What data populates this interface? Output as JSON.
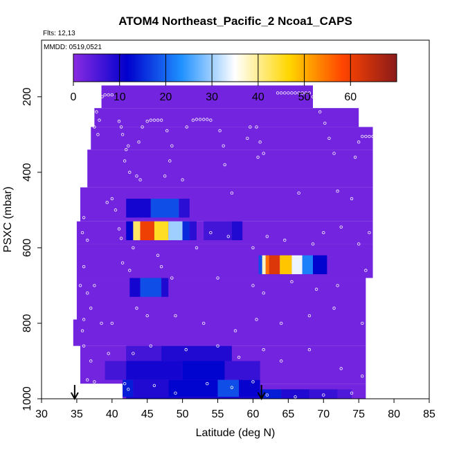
{
  "chart_data": {
    "type": "heatmap",
    "title": "ATOM4 Northeast_Pacific_2 Ncoa1_CAPS",
    "flights_label": "Flts: 12,13",
    "dates_label": "MMDD: 0519,0521",
    "xlabel": "Latitude (deg N)",
    "ylabel": "PSXC (mbar)",
    "xlim": [
      30,
      85
    ],
    "ylim": [
      1000,
      50
    ],
    "x_ticks": [
      30,
      35,
      40,
      45,
      50,
      55,
      60,
      65,
      70,
      75,
      80,
      85
    ],
    "y_ticks": [
      200,
      400,
      600,
      800,
      1000
    ],
    "colorbar": {
      "range": [
        0,
        70
      ],
      "ticks": [
        0,
        10,
        20,
        30,
        40,
        50,
        60
      ],
      "colors": [
        "#8a2be2",
        "#0000cd",
        "#1e90ff",
        "#ffffff",
        "#ffd700",
        "#ff4500",
        "#8b1a1a"
      ]
    },
    "background_value": 2,
    "domain_rows": [
      {
        "p0": 170,
        "p1": 230,
        "lat0": 38.5,
        "lat1": 68.5
      },
      {
        "p0": 230,
        "p1": 280,
        "lat0": 37.5,
        "lat1": 75.0
      },
      {
        "p0": 280,
        "p1": 340,
        "lat0": 37.0,
        "lat1": 77.0
      },
      {
        "p0": 340,
        "p1": 440,
        "lat0": 36.5,
        "lat1": 77.0
      },
      {
        "p0": 440,
        "p1": 530,
        "lat0": 35.5,
        "lat1": 77.0
      },
      {
        "p0": 530,
        "p1": 590,
        "lat0": 35.0,
        "lat1": 77.0
      },
      {
        "p0": 590,
        "p1": 680,
        "lat0": 35.0,
        "lat1": 77.0
      },
      {
        "p0": 680,
        "p1": 790,
        "lat0": 35.0,
        "lat1": 76.0
      },
      {
        "p0": 790,
        "p1": 860,
        "lat0": 34.5,
        "lat1": 76.0
      },
      {
        "p0": 860,
        "p1": 960,
        "lat0": 35.5,
        "lat1": 76.0
      },
      {
        "p0": 960,
        "p1": 1000,
        "lat0": 41.5,
        "lat1": 76.0
      }
    ],
    "high_cells": [
      {
        "p0": 470,
        "p1": 520,
        "lat0": 42.0,
        "lat1": 45.5,
        "v": 10
      },
      {
        "p0": 470,
        "p1": 520,
        "lat0": 45.5,
        "lat1": 49.5,
        "v": 18
      },
      {
        "p0": 470,
        "p1": 520,
        "lat0": 49.5,
        "lat1": 51.0,
        "v": 8
      },
      {
        "p0": 530,
        "p1": 580,
        "lat0": 42.0,
        "lat1": 43.0,
        "v": 12
      },
      {
        "p0": 530,
        "p1": 580,
        "lat0": 43.0,
        "lat1": 44.0,
        "v": 42
      },
      {
        "p0": 530,
        "p1": 580,
        "lat0": 44.0,
        "lat1": 46.0,
        "v": 60
      },
      {
        "p0": 530,
        "p1": 580,
        "lat0": 46.0,
        "lat1": 48.0,
        "v": 45
      },
      {
        "p0": 530,
        "p1": 580,
        "lat0": 48.0,
        "lat1": 50.0,
        "v": 30
      },
      {
        "p0": 530,
        "p1": 580,
        "lat0": 50.0,
        "lat1": 51.0,
        "v": 15
      },
      {
        "p0": 530,
        "p1": 580,
        "lat0": 51.0,
        "lat1": 52.0,
        "v": 8
      },
      {
        "p0": 530,
        "p1": 580,
        "lat0": 53.0,
        "lat1": 57.0,
        "v": 6
      },
      {
        "p0": 530,
        "p1": 580,
        "lat0": 57.0,
        "lat1": 58.5,
        "v": 9
      },
      {
        "p0": 620,
        "p1": 670,
        "lat0": 60.8,
        "lat1": 61.3,
        "v": 18
      },
      {
        "p0": 620,
        "p1": 670,
        "lat0": 61.3,
        "lat1": 61.8,
        "v": 38
      },
      {
        "p0": 620,
        "p1": 670,
        "lat0": 61.8,
        "lat1": 62.3,
        "v": 55
      },
      {
        "p0": 620,
        "p1": 670,
        "lat0": 62.3,
        "lat1": 63.8,
        "v": 62
      },
      {
        "p0": 620,
        "p1": 670,
        "lat0": 63.8,
        "lat1": 65.5,
        "v": 48
      },
      {
        "p0": 620,
        "p1": 670,
        "lat0": 65.5,
        "lat1": 67.0,
        "v": 34
      },
      {
        "p0": 620,
        "p1": 670,
        "lat0": 67.0,
        "lat1": 68.5,
        "v": 22
      },
      {
        "p0": 620,
        "p1": 670,
        "lat0": 68.5,
        "lat1": 70.5,
        "v": 12
      },
      {
        "p0": 680,
        "p1": 730,
        "lat0": 42.5,
        "lat1": 44.0,
        "v": 10
      },
      {
        "p0": 680,
        "p1": 730,
        "lat0": 44.0,
        "lat1": 47.0,
        "v": 18
      },
      {
        "p0": 680,
        "p1": 730,
        "lat0": 47.0,
        "lat1": 48.0,
        "v": 9
      },
      {
        "p0": 860,
        "p1": 900,
        "lat0": 42.0,
        "lat1": 47.0,
        "v": 6
      },
      {
        "p0": 860,
        "p1": 900,
        "lat0": 47.0,
        "lat1": 57.0,
        "v": 9
      },
      {
        "p0": 900,
        "p1": 950,
        "lat0": 39.0,
        "lat1": 42.0,
        "v": 6
      },
      {
        "p0": 900,
        "p1": 950,
        "lat0": 42.0,
        "lat1": 50.0,
        "v": 10
      },
      {
        "p0": 900,
        "p1": 950,
        "lat0": 50.0,
        "lat1": 56.0,
        "v": 12
      },
      {
        "p0": 900,
        "p1": 950,
        "lat0": 56.0,
        "lat1": 61.0,
        "v": 7
      },
      {
        "p0": 950,
        "p1": 995,
        "lat0": 41.5,
        "lat1": 43.0,
        "v": 14
      },
      {
        "p0": 950,
        "p1": 995,
        "lat0": 43.0,
        "lat1": 48.0,
        "v": 9
      },
      {
        "p0": 950,
        "p1": 995,
        "lat0": 48.0,
        "lat1": 55.0,
        "v": 12
      },
      {
        "p0": 950,
        "p1": 995,
        "lat0": 55.0,
        "lat1": 58.0,
        "v": 18
      },
      {
        "p0": 950,
        "p1": 995,
        "lat0": 58.0,
        "lat1": 61.0,
        "v": 11
      },
      {
        "p0": 995,
        "p1": 1000,
        "lat0": 42.0,
        "lat1": 61.0,
        "v": 10
      },
      {
        "p0": 975,
        "p1": 1000,
        "lat0": 61.0,
        "lat1": 64.0,
        "v": 14
      },
      {
        "p0": 975,
        "p1": 1000,
        "lat0": 64.0,
        "lat1": 68.0,
        "v": 9
      },
      {
        "p0": 975,
        "p1": 1000,
        "lat0": 68.0,
        "lat1": 72.0,
        "v": 7
      },
      {
        "p0": 975,
        "p1": 1000,
        "lat0": 72.0,
        "lat1": 74.0,
        "v": 5
      }
    ],
    "sample_points": [
      [
        38.6,
        200
      ],
      [
        39.0,
        195
      ],
      [
        39.5,
        195
      ],
      [
        40.0,
        195
      ],
      [
        37.8,
        240
      ],
      [
        38.2,
        262
      ],
      [
        37.5,
        280
      ],
      [
        38.0,
        300
      ],
      [
        41.0,
        265
      ],
      [
        41.3,
        280
      ],
      [
        41.5,
        300
      ],
      [
        42.0,
        340
      ],
      [
        41.8,
        370
      ],
      [
        42.3,
        330
      ],
      [
        42.5,
        400
      ],
      [
        45.0,
        265
      ],
      [
        45.5,
        262
      ],
      [
        46.0,
        262
      ],
      [
        46.5,
        262
      ],
      [
        47.0,
        262
      ],
      [
        44.3,
        280
      ],
      [
        43.8,
        320
      ],
      [
        47.8,
        290
      ],
      [
        48.5,
        330
      ],
      [
        48.2,
        370
      ],
      [
        47.5,
        410
      ],
      [
        51.5,
        262
      ],
      [
        52.0,
        260
      ],
      [
        52.5,
        260
      ],
      [
        53.0,
        260
      ],
      [
        53.5,
        260
      ],
      [
        54.0,
        262
      ],
      [
        50.6,
        280
      ],
      [
        55.3,
        290
      ],
      [
        55.8,
        330
      ],
      [
        56.0,
        380
      ],
      [
        59.6,
        280
      ],
      [
        60.5,
        280
      ],
      [
        59.2,
        310
      ],
      [
        61.0,
        320
      ],
      [
        60.7,
        360
      ],
      [
        61.5,
        350
      ],
      [
        63.5,
        190
      ],
      [
        64.0,
        190
      ],
      [
        64.5,
        190
      ],
      [
        65.0,
        190
      ],
      [
        65.5,
        190
      ],
      [
        66.0,
        190
      ],
      [
        66.5,
        190
      ],
      [
        67.0,
        190
      ],
      [
        67.5,
        190
      ],
      [
        68.0,
        190
      ],
      [
        68.5,
        200
      ],
      [
        69.0,
        220
      ],
      [
        69.5,
        240
      ],
      [
        70.2,
        270
      ],
      [
        70.8,
        310
      ],
      [
        71.5,
        350
      ],
      [
        75.5,
        305
      ],
      [
        76.0,
        305
      ],
      [
        76.5,
        305
      ],
      [
        77.0,
        305
      ],
      [
        75.0,
        320
      ],
      [
        74.5,
        360
      ],
      [
        77.5,
        285
      ],
      [
        81.0,
        280
      ],
      [
        80.5,
        310
      ],
      [
        81.5,
        340
      ],
      [
        43.5,
        410
      ],
      [
        44.0,
        420
      ],
      [
        50.0,
        420
      ],
      [
        57.0,
        455
      ],
      [
        66.5,
        455
      ],
      [
        72.0,
        450
      ],
      [
        74.0,
        470
      ],
      [
        39.3,
        480
      ],
      [
        40.0,
        470
      ],
      [
        40.5,
        500
      ],
      [
        36.0,
        520
      ],
      [
        35.8,
        560
      ],
      [
        36.5,
        580
      ],
      [
        41.0,
        550
      ],
      [
        41.3,
        575
      ],
      [
        43.0,
        600
      ],
      [
        46.5,
        620
      ],
      [
        52.0,
        600
      ],
      [
        54.0,
        560
      ],
      [
        56.5,
        570
      ],
      [
        60.0,
        600
      ],
      [
        62.0,
        570
      ],
      [
        64.5,
        580
      ],
      [
        68.5,
        590
      ],
      [
        70.0,
        560
      ],
      [
        72.5,
        545
      ],
      [
        75.0,
        590
      ],
      [
        76.5,
        560
      ],
      [
        36.0,
        650
      ],
      [
        35.5,
        700
      ],
      [
        36.5,
        720
      ],
      [
        37.5,
        700
      ],
      [
        41.5,
        640
      ],
      [
        42.5,
        660
      ],
      [
        47.0,
        650
      ],
      [
        48.5,
        680
      ],
      [
        55.0,
        680
      ],
      [
        60.0,
        700
      ],
      [
        61.5,
        720
      ],
      [
        65.5,
        690
      ],
      [
        69.0,
        710
      ],
      [
        72.0,
        700
      ],
      [
        76.0,
        660
      ],
      [
        77.0,
        700
      ],
      [
        37.0,
        760
      ],
      [
        36.0,
        790
      ],
      [
        35.8,
        820
      ],
      [
        38.5,
        800
      ],
      [
        40.0,
        800
      ],
      [
        43.5,
        760
      ],
      [
        45.0,
        780
      ],
      [
        49.0,
        780
      ],
      [
        53.0,
        800
      ],
      [
        57.5,
        820
      ],
      [
        60.5,
        790
      ],
      [
        64.0,
        800
      ],
      [
        68.0,
        780
      ],
      [
        71.5,
        760
      ],
      [
        75.5,
        800
      ],
      [
        36.0,
        860
      ],
      [
        37.0,
        900
      ],
      [
        36.5,
        950
      ],
      [
        37.5,
        955
      ],
      [
        39.5,
        880
      ],
      [
        43.0,
        880
      ],
      [
        45.5,
        860
      ],
      [
        50.5,
        870
      ],
      [
        55.0,
        860
      ],
      [
        58.0,
        890
      ],
      [
        61.5,
        870
      ],
      [
        64.0,
        900
      ],
      [
        68.0,
        870
      ],
      [
        72.5,
        920
      ],
      [
        75.5,
        940
      ],
      [
        41.8,
        960
      ],
      [
        42.3,
        975
      ],
      [
        46.0,
        965
      ],
      [
        49.0,
        985
      ],
      [
        53.5,
        960
      ],
      [
        57.0,
        970
      ],
      [
        60.0,
        955
      ],
      [
        62.0,
        990
      ],
      [
        66.0,
        995
      ],
      [
        70.0,
        990
      ],
      [
        74.0,
        985
      ],
      [
        79.0,
        995
      ]
    ],
    "arrows_lat": [
      34.7,
      61.2
    ]
  }
}
